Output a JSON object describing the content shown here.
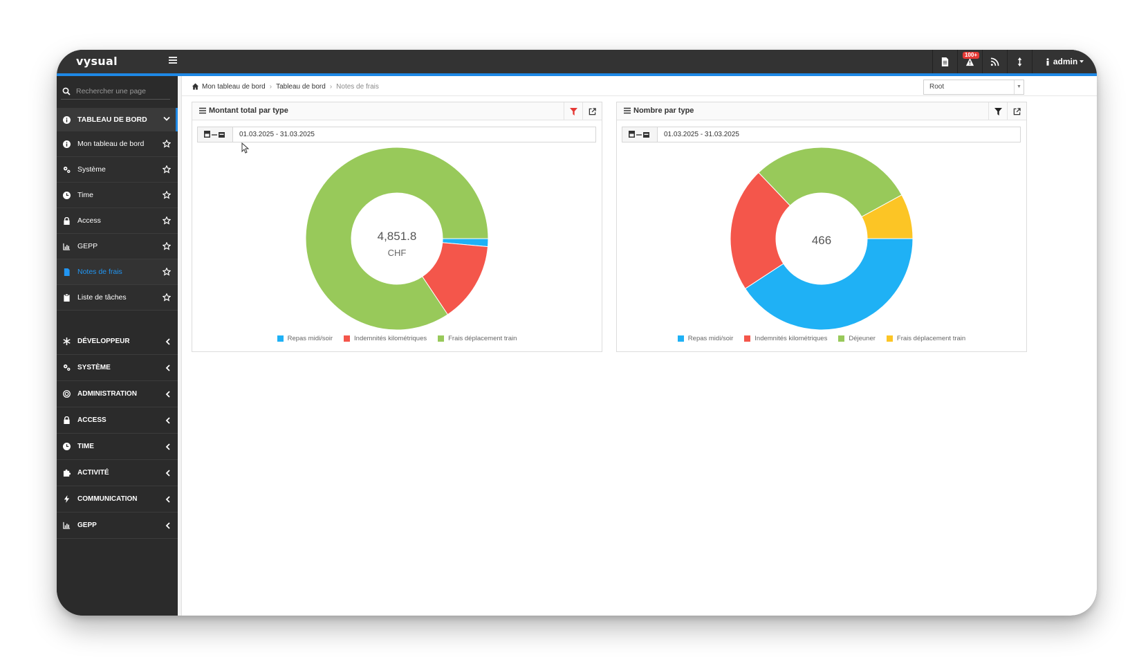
{
  "app": {
    "logo": "vysual",
    "notification_badge": "100+",
    "user_label": "admin"
  },
  "sidebar": {
    "search_placeholder": "Rechercher une page",
    "open_section": "TABLEAU DE BORD",
    "items": [
      {
        "label": "Mon tableau de bord",
        "icon": "info-icon"
      },
      {
        "label": "Système",
        "icon": "gears-icon"
      },
      {
        "label": "Time",
        "icon": "clock-icon"
      },
      {
        "label": "Access",
        "icon": "lock-icon"
      },
      {
        "label": "GEPP",
        "icon": "bar-chart-icon"
      },
      {
        "label": "Notes de frais",
        "icon": "document-icon",
        "active": true
      },
      {
        "label": "Liste de tâches",
        "icon": "clipboard-icon"
      }
    ],
    "groups": [
      {
        "label": "DÉVELOPPEUR",
        "icon": "asterisk-icon"
      },
      {
        "label": "SYSTÈME",
        "icon": "gears-icon"
      },
      {
        "label": "ADMINISTRATION",
        "icon": "target-icon"
      },
      {
        "label": "ACCESS",
        "icon": "lock-icon"
      },
      {
        "label": "TIME",
        "icon": "clock-icon"
      },
      {
        "label": "ACTIVITÉ",
        "icon": "puzzle-icon"
      },
      {
        "label": "COMMUNICATION",
        "icon": "bolt-icon"
      },
      {
        "label": "GEPP",
        "icon": "bar-chart-icon"
      }
    ]
  },
  "breadcrumb": [
    "Mon tableau de bord",
    "Tableau de bord",
    "Notes de frais"
  ],
  "root_select": {
    "value": "Root"
  },
  "panels": [
    {
      "title": "Montant total par type",
      "date_range": "01.03.2025 - 31.03.2025",
      "filter_active": true,
      "center_value": "4,851.8",
      "center_unit": "CHF"
    },
    {
      "title": "Nombre par type",
      "date_range": "01.03.2025 - 31.03.2025",
      "filter_active": false,
      "center_value": "466",
      "center_unit": ""
    }
  ],
  "colors": {
    "accent": "#1e88e5",
    "blue": "#1fb1f5",
    "red": "#f4564b",
    "green": "#98c95a",
    "yellow": "#fcc525",
    "filter_active": "#e53935"
  },
  "chart_data": [
    {
      "type": "pie",
      "title": "Montant total par type",
      "center_label": "4,851.8 CHF",
      "categories": [
        "Repas midi/soir",
        "Indemnités kilométriques",
        "Frais déplacement train"
      ],
      "values": [
        68,
        690,
        4093.8
      ],
      "colors": [
        "#1fb1f5",
        "#f4564b",
        "#98c95a"
      ],
      "legend": "bottom"
    },
    {
      "type": "pie",
      "title": "Nombre par type",
      "center_label": "466",
      "categories": [
        "Repas midi/soir",
        "Indemnités kilométriques",
        "Déjeuner",
        "Frais déplacement train"
      ],
      "values": [
        190,
        103,
        136,
        37
      ],
      "colors": [
        "#1fb1f5",
        "#f4564b",
        "#98c95a",
        "#fcc525"
      ],
      "legend": "bottom"
    }
  ]
}
